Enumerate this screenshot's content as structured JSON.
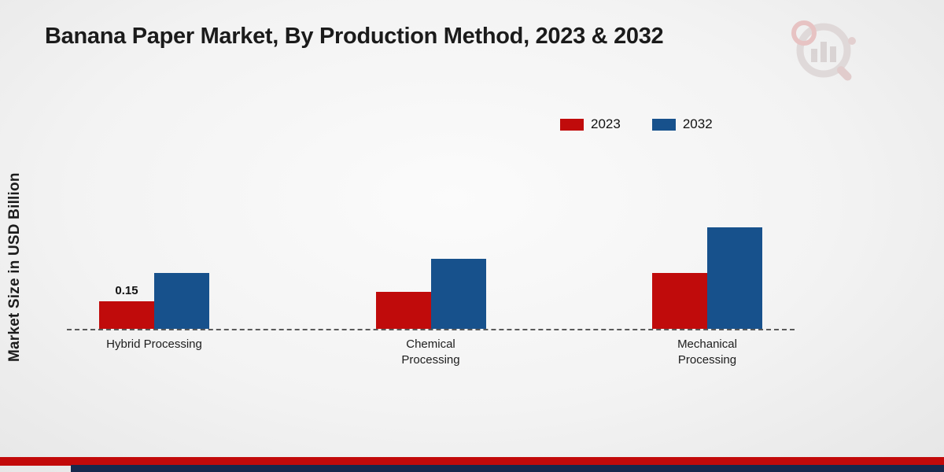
{
  "title": "Banana Paper Market, By Production Method, 2023 & 2032",
  "y_axis_label": "Market Size in USD Billion",
  "brand_logo": "market-research-bar-chart-magnifier-logo",
  "colors": {
    "bar_2023": "#c00b0b",
    "bar_2032": "#17518c",
    "footer_red_stripe": "#c20a0a",
    "footer_navy_stripe": "#16294d",
    "baseline_dash": "#5a5a5a"
  },
  "chart_data": {
    "type": "bar",
    "title": "Banana Paper Market, By Production Method, 2023 & 2032",
    "ylabel": "Market Size in USD Billion",
    "xlabel": "",
    "categories": [
      "Hybrid Processing",
      "Chemical Processing",
      "Mechanical Processing"
    ],
    "series": [
      {
        "name": "2023",
        "color": "#c00b0b",
        "values": [
          0.15,
          0.2,
          0.3
        ],
        "labels": [
          "0.15",
          "",
          ""
        ]
      },
      {
        "name": "2032",
        "color": "#17518c",
        "values": [
          0.3,
          0.38,
          0.55
        ],
        "labels": [
          "",
          "",
          ""
        ]
      }
    ],
    "ylim": [
      0,
      0.6
    ],
    "grid": false,
    "legend_position": "top-right",
    "baseline_style": "dashed",
    "annotations": [
      "Only the first 2023 bar carries an explicit data label: 0.15"
    ]
  }
}
